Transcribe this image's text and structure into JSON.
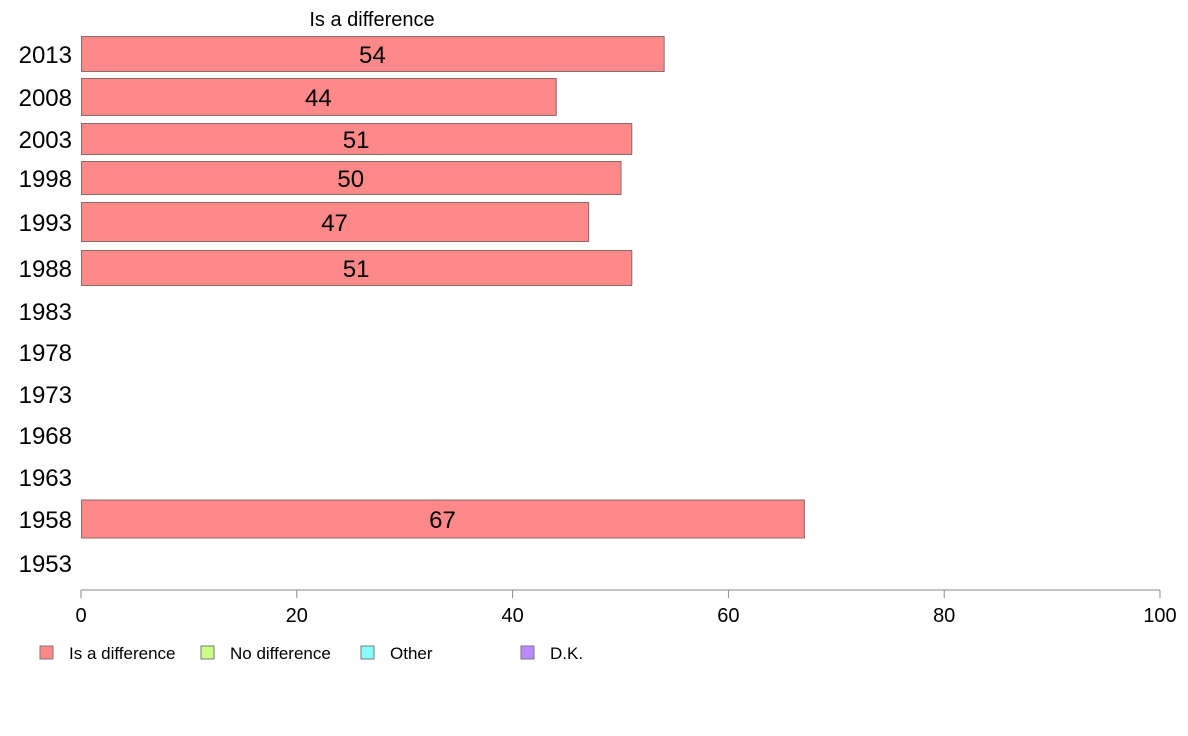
{
  "chart_data": {
    "type": "bar",
    "orientation": "horizontal",
    "title": "Is a difference",
    "categories": [
      "2013",
      "2008",
      "2003",
      "1998",
      "1993",
      "1988",
      "1983",
      "1978",
      "1973",
      "1968",
      "1963",
      "1958",
      "1953"
    ],
    "series": [
      {
        "name": "Is a difference",
        "color": "#ff8888",
        "values": [
          54,
          44,
          51,
          50,
          47,
          51,
          null,
          null,
          null,
          null,
          null,
          67,
          null
        ],
        "labels": [
          "54",
          "44",
          "51",
          "50",
          "47",
          "51",
          "",
          "",
          "",
          "",
          "",
          "67",
          ""
        ]
      }
    ],
    "x_ticks": [
      "0",
      "20",
      "40",
      "60",
      "80",
      "100"
    ],
    "xlim": [
      0,
      100
    ],
    "grid": false,
    "legend_position": "bottom-left",
    "legend": [
      {
        "label": "Is a difference",
        "color": "#ff8888"
      },
      {
        "label": "No difference",
        "color": "#ccff88"
      },
      {
        "label": "Other",
        "color": "#88ffff"
      },
      {
        "label": "D.K.",
        "color": "#bb88ff"
      }
    ]
  }
}
